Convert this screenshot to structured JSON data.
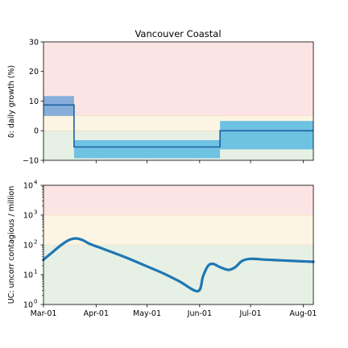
{
  "chart_data": [
    {
      "type": "line",
      "title": "Vancouver Coastal",
      "ylabel": "δ: daily growth (%)",
      "ylim": [
        -10,
        30
      ],
      "yticks": [
        "−10",
        "0",
        "10",
        "20",
        "30"
      ],
      "xlim": [
        "2020-03-01",
        "2020-08-07"
      ],
      "zones": [
        {
          "from": 5,
          "to": 30,
          "color": "#fde4e4"
        },
        {
          "from": 0,
          "to": 5,
          "color": "#fdf5e3"
        },
        {
          "from": -10,
          "to": 0,
          "color": "#e6f0e4"
        }
      ],
      "segments": [
        {
          "start": "2020-03-01",
          "end": "2020-03-19",
          "value": 8.7,
          "low": 5.0,
          "high": 11.7,
          "band_color": "#86aedb"
        },
        {
          "start": "2020-03-19",
          "end": "2020-06-13",
          "value": -5.5,
          "low": -9.3,
          "high": -3.2,
          "band_color": "#6ec2e2"
        },
        {
          "start": "2020-06-13",
          "end": "2020-08-07",
          "value": 0.0,
          "low": -6.3,
          "high": 3.3,
          "band_color": "#6ec2e2"
        }
      ],
      "line_color": "#1f5f9f"
    },
    {
      "type": "line",
      "ylabel": "UC: uncorr contagious / million",
      "yscale": "log",
      "ylim": [
        1,
        10000
      ],
      "yticks": [
        {
          "base": "10",
          "exp": "0"
        },
        {
          "base": "10",
          "exp": "1"
        },
        {
          "base": "10",
          "exp": "2"
        },
        {
          "base": "10",
          "exp": "3"
        },
        {
          "base": "10",
          "exp": "4"
        }
      ],
      "xlim": [
        "2020-03-01",
        "2020-08-07"
      ],
      "xticks": [
        {
          "date": "2020-03-01",
          "label": "Mar-01"
        },
        {
          "date": "2020-04-01",
          "label": "Apr-01"
        },
        {
          "date": "2020-05-01",
          "label": "May-01"
        },
        {
          "date": "2020-06-01",
          "label": "Jun-01"
        },
        {
          "date": "2020-07-01",
          "label": "Jul-01"
        },
        {
          "date": "2020-08-01",
          "label": "Aug-01"
        }
      ],
      "zones": [
        {
          "from": 1000,
          "to": 10000,
          "color": "#fde4e4"
        },
        {
          "from": 100,
          "to": 1000,
          "color": "#fdf5e3"
        },
        {
          "from": 1,
          "to": 100,
          "color": "#e6f0e4"
        }
      ],
      "series": [
        {
          "color": "#1f77b4",
          "points": [
            [
              "2020-03-01",
              32
            ],
            [
              "2020-03-06",
              55
            ],
            [
              "2020-03-11",
              95
            ],
            [
              "2020-03-16",
              145
            ],
            [
              "2020-03-20",
              165
            ],
            [
              "2020-03-24",
              145
            ],
            [
              "2020-03-28",
              110
            ],
            [
              "2020-04-01",
              90
            ],
            [
              "2020-04-10",
              58
            ],
            [
              "2020-04-20",
              35
            ],
            [
              "2020-05-01",
              19
            ],
            [
              "2020-05-10",
              11.5
            ],
            [
              "2020-05-20",
              6
            ],
            [
              "2020-05-31",
              2.8
            ],
            [
              "2020-06-03",
              9
            ],
            [
              "2020-06-06",
              20
            ],
            [
              "2020-06-09",
              23
            ],
            [
              "2020-06-13",
              18
            ],
            [
              "2020-06-18",
              14.5
            ],
            [
              "2020-06-22",
              18
            ],
            [
              "2020-06-26",
              29
            ],
            [
              "2020-07-01",
              34
            ],
            [
              "2020-07-10",
              32
            ],
            [
              "2020-07-20",
              30
            ],
            [
              "2020-08-07",
              27
            ]
          ]
        }
      ]
    }
  ]
}
